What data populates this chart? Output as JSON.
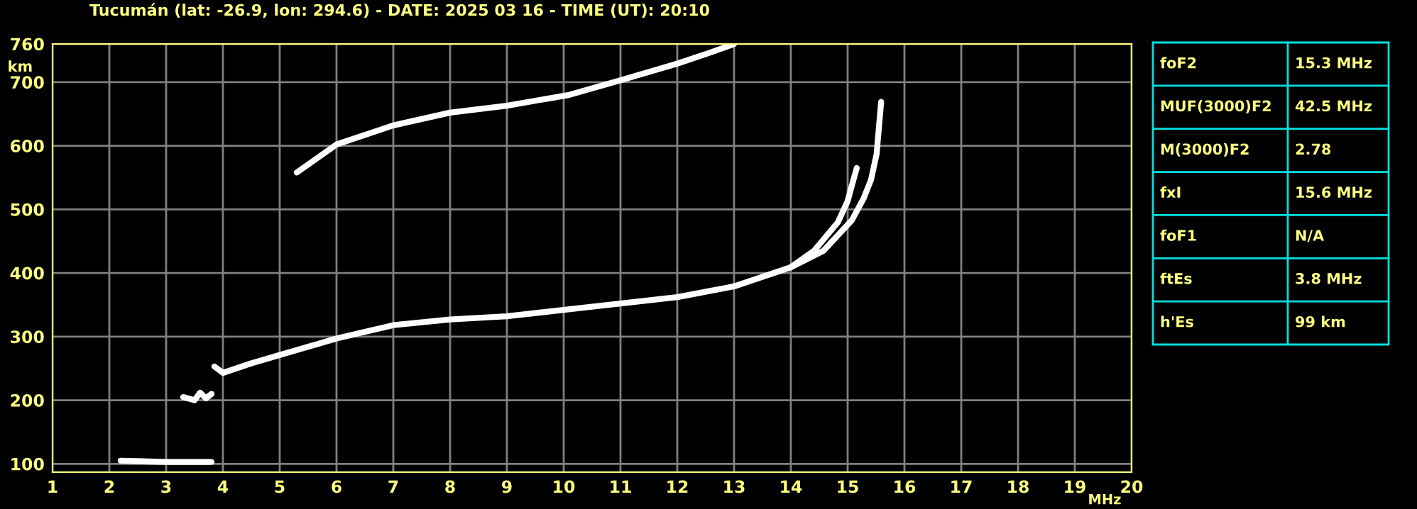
{
  "chart_data": {
    "type": "line",
    "title": "Tucumán (lat: -26.9, lon: 294.6) - DATE: 2025 03 16 - TIME (UT): 20:10",
    "xlabel": "MHz",
    "ylabel": "km",
    "xlim": [
      1,
      20
    ],
    "xticks": [
      1,
      2,
      3,
      4,
      5,
      6,
      7,
      8,
      9,
      10,
      11,
      12,
      13,
      14,
      15,
      16,
      17,
      18,
      19,
      20
    ],
    "ylim": [
      87,
      760
    ],
    "yticks": [
      100,
      200,
      300,
      400,
      500,
      600,
      700,
      760
    ],
    "grid": true,
    "marker": "none",
    "line_style": "solid",
    "series": [
      {
        "color": "#ffffff",
        "x": [
          2.2,
          2.6,
          3.0,
          3.4,
          3.8
        ],
        "values": [
          105,
          104,
          103,
          103,
          103
        ]
      },
      {
        "color": "#ffffff",
        "x": [
          3.3,
          3.5,
          3.6,
          3.7,
          3.8
        ],
        "values": [
          205,
          200,
          212,
          203,
          210
        ]
      },
      {
        "color": "#ffffff",
        "x": [
          3.85,
          4.0,
          4.5,
          5,
          6,
          7,
          8,
          9,
          10,
          11,
          12,
          13,
          14,
          14.41,
          14.83,
          15.0,
          15.1,
          15.16
        ],
        "values": [
          253,
          243,
          258,
          271,
          297,
          318,
          327,
          332,
          342,
          352,
          362,
          379,
          409,
          435,
          480,
          513,
          546,
          565
        ]
      },
      {
        "color": "#ffffff",
        "x": [
          14.0,
          14.575,
          15.075,
          15.28,
          15.41,
          15.51,
          15.55,
          15.59
        ],
        "values": [
          409,
          435,
          483,
          517,
          546,
          587,
          628,
          669
        ]
      },
      {
        "color": "#ffffff",
        "x": [
          5.3,
          6.0,
          7.0,
          8.0,
          9.0,
          10.1,
          11.0,
          12.0,
          12.6,
          13.0
        ],
        "values": [
          558,
          602,
          632,
          652,
          663,
          680,
          703,
          729,
          747,
          760
        ]
      }
    ],
    "annotations": [
      "foF2",
      "15.3 MHz",
      "MUF(3000)F2",
      "42.5 MHz",
      "M(3000)F2",
      "2.78",
      "fxI",
      "15.6 MHz",
      "foF1",
      "N/A",
      "ftEs",
      "3.8 MHz",
      "h'Es",
      "99 km"
    ]
  }
}
